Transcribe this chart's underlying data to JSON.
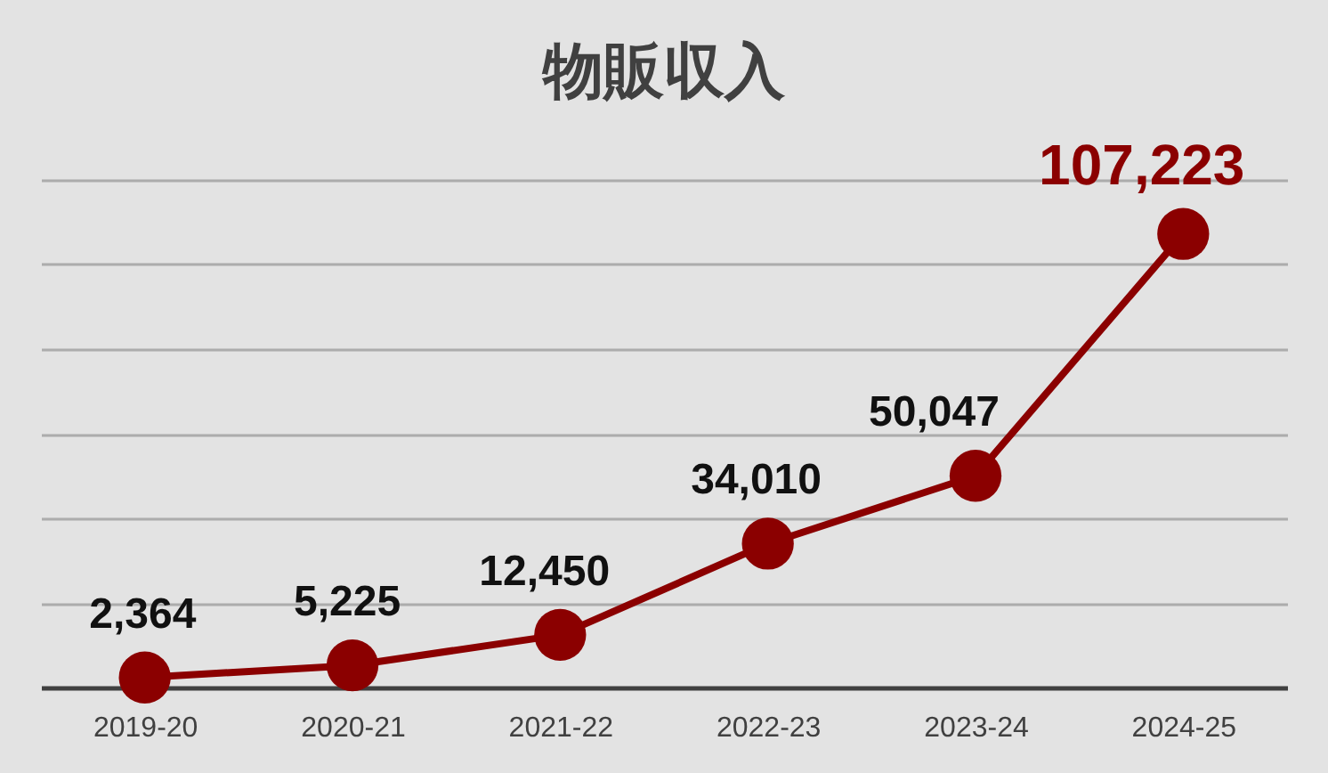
{
  "chart_data": {
    "type": "line",
    "title": "物販収入",
    "categories": [
      "2019-20",
      "2020-21",
      "2021-22",
      "2022-23",
      "2023-24",
      "2024-25"
    ],
    "values": [
      2364,
      5225,
      12450,
      34010,
      50047,
      107223
    ],
    "color": "#8b0000",
    "value_labels": [
      "2,364",
      "5,225",
      "12,450",
      "34,010",
      "50,047",
      "107,223"
    ],
    "ylim": [
      0,
      120000
    ],
    "yticks": [
      {
        "value": 0,
        "label": null
      },
      {
        "value": 20000,
        "label": null
      },
      {
        "value": 40000,
        "label": null
      },
      {
        "value": 60000,
        "label": null
      },
      {
        "value": 80000,
        "label": null
      },
      {
        "value": 100000,
        "label": null
      },
      {
        "value": 120000,
        "label": null
      }
    ],
    "grid": "y",
    "tick_labels": "x",
    "marker": "circle",
    "line_style": "solid"
  }
}
